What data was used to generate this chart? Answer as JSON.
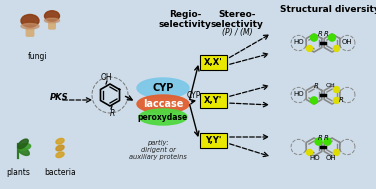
{
  "bg_color": "#cddce8",
  "title_regio": "Regio-\nselectivity",
  "title_stereo": "Stereo-\nselectivity",
  "stereo_sub": "(P) / (M)",
  "title_struct": "Structural diversity",
  "enzyme_cyp": "CYP",
  "enzyme_laccase": "laccase",
  "enzyme_peroxydase": "peroxydase",
  "partly_text": "partly:\ndirigent or\nauxiliary proteins",
  "pks_label": "PKS",
  "fungi_label": "fungi",
  "plants_label": "plants",
  "bacteria_label": "bacteria",
  "cyp_label": "CYP",
  "box_labels": [
    "X,X'",
    "X,Y'",
    "Y,Y'"
  ],
  "box_color": "#e8e800",
  "cyp_ellipse_color": "#7ec8e8",
  "laccase_ellipse_color": "#e06030",
  "peroxydase_ellipse_color": "#50d840",
  "oh_color": "#000000",
  "struct_gray": "#888888",
  "green_hl": "#40dd00",
  "yellow_hl": "#dddd00"
}
